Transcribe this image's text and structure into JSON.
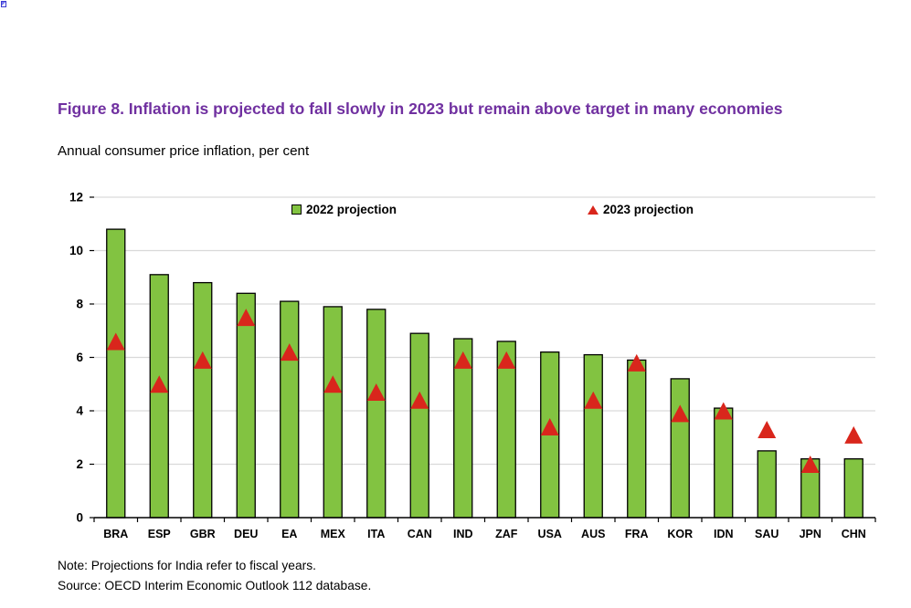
{
  "page": {
    "corner_icon": "broken-image-icon"
  },
  "figure": {
    "title": "Figure 8. Inflation is projected to fall slowly in 2023 but remain above target in many economies",
    "subtitle": "Annual consumer price inflation, per cent",
    "note": "Note: Projections for India refer to fiscal years.",
    "source": "Source: OECD Interim Economic Outlook 112 database."
  },
  "colors": {
    "title": "#7030A0",
    "bar_fill": "#82C341",
    "bar_stroke": "#000000",
    "marker_fill": "#D9261C",
    "gridline": "#D9D9D9",
    "axis": "#000000",
    "text": "#000000"
  },
  "chart_data": {
    "type": "bar",
    "title": "Figure 8. Inflation is projected to fall slowly in 2023 but remain above target in many economies",
    "subtitle": "Annual consumer price inflation, per cent",
    "xlabel": "",
    "ylabel": "",
    "ylim": [
      0,
      12
    ],
    "ytick_step": 2,
    "grid": true,
    "legend_position": "top-inside",
    "categories": [
      "BRA",
      "ESP",
      "GBR",
      "DEU",
      "EA",
      "MEX",
      "ITA",
      "CAN",
      "IND",
      "ZAF",
      "USA",
      "AUS",
      "FRA",
      "KOR",
      "IDN",
      "SAU",
      "JPN",
      "CHN"
    ],
    "series": [
      {
        "name": "2022 projection",
        "type": "bar",
        "color": "#82C341",
        "values": [
          10.8,
          9.1,
          8.8,
          8.4,
          8.1,
          7.9,
          7.8,
          6.9,
          6.7,
          6.6,
          6.2,
          6.1,
          5.9,
          5.2,
          4.1,
          2.5,
          2.2,
          2.2
        ]
      },
      {
        "name": "2023 projection",
        "type": "triangle-marker",
        "color": "#D9261C",
        "values": [
          6.6,
          5.0,
          5.9,
          7.5,
          6.2,
          5.0,
          4.7,
          4.4,
          5.9,
          5.9,
          3.4,
          4.4,
          5.8,
          3.9,
          4.0,
          3.3,
          2.0,
          3.1
        ]
      }
    ]
  }
}
